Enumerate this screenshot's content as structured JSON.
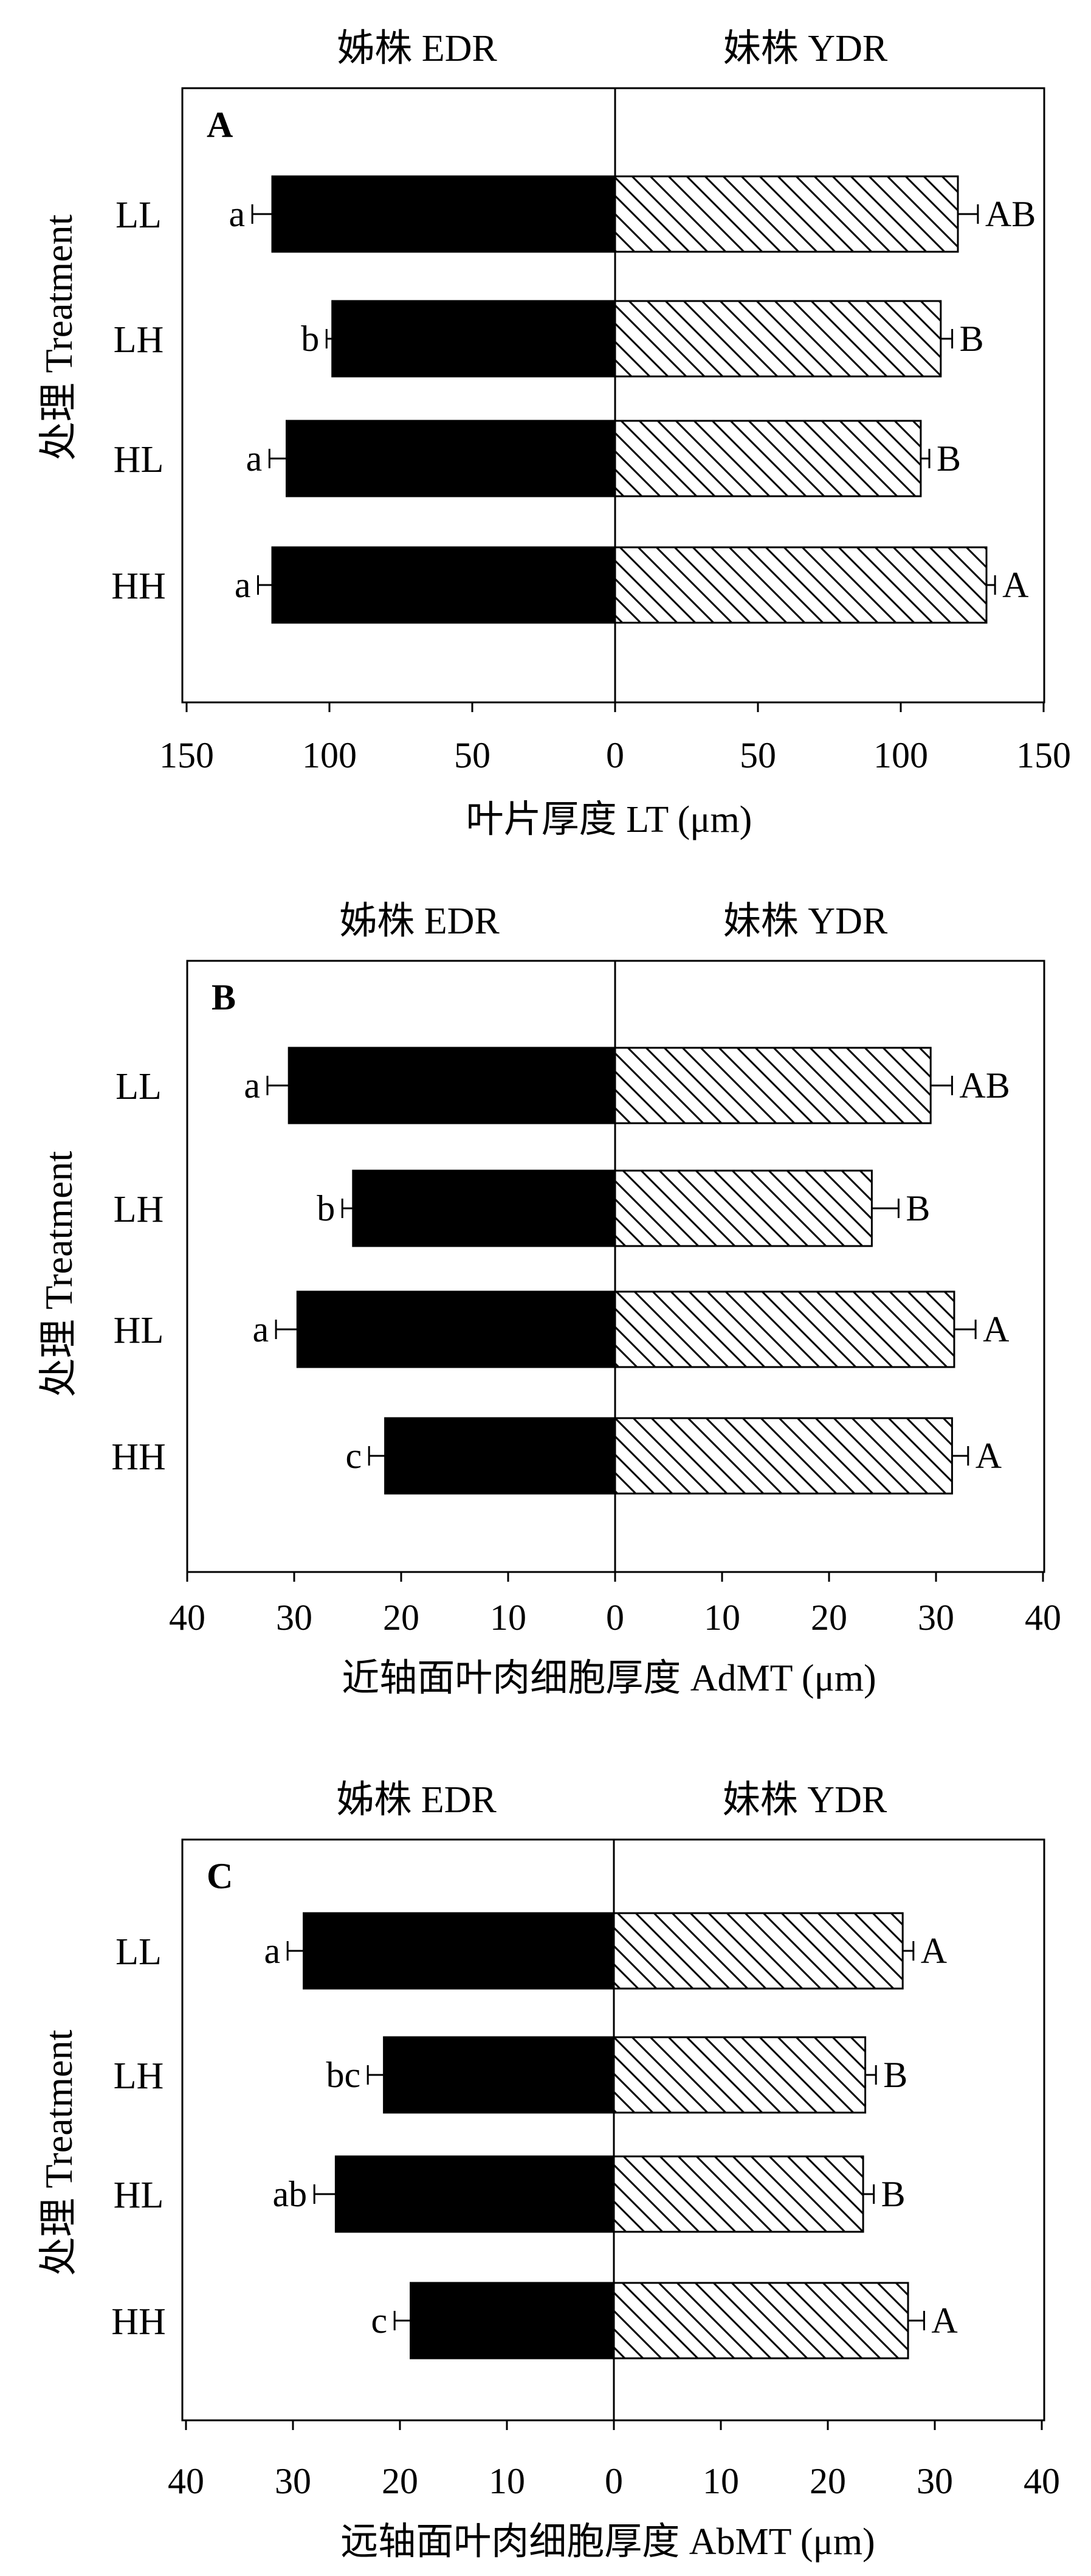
{
  "y_axis_label": "处理 Treatment",
  "chart_data": [
    {
      "type": "bar",
      "panel_label": "A",
      "left_title": "姊株 EDR",
      "right_title": "妹株 YDR",
      "xlabel": "叶片厚度 LT (μm)",
      "xlim": [
        -150,
        150
      ],
      "xticks": [
        -150,
        -100,
        -50,
        0,
        50,
        100,
        150
      ],
      "xtick_labels": [
        "150",
        "100",
        "50",
        "0",
        "50",
        "100",
        "150"
      ],
      "categories": [
        "LL",
        "LH",
        "HL",
        "HH"
      ],
      "series": [
        {
          "name": "姊株 EDR",
          "fill": "solid",
          "values": [
            120,
            99,
            115,
            120
          ],
          "errors": [
            7,
            2,
            6,
            5
          ],
          "labels": [
            "a",
            "b",
            "a",
            "a"
          ]
        },
        {
          "name": "妹株 YDR",
          "fill": "hatch",
          "values": [
            120,
            114,
            107,
            130
          ],
          "errors": [
            7,
            4,
            3,
            3
          ],
          "labels": [
            "AB",
            "B",
            "B",
            "A"
          ]
        }
      ]
    },
    {
      "type": "bar",
      "panel_label": "B",
      "left_title": "姊株 EDR",
      "right_title": "妹株 YDR",
      "xlabel": "近轴面叶肉细胞厚度 AdMT (μm)",
      "xlim": [
        -40,
        40
      ],
      "xticks": [
        -40,
        -30,
        -20,
        -10,
        0,
        10,
        20,
        30,
        40
      ],
      "xtick_labels": [
        "40",
        "30",
        "20",
        "10",
        "0",
        "10",
        "20",
        "30",
        "40"
      ],
      "categories": [
        "LL",
        "LH",
        "HL",
        "HH"
      ],
      "series": [
        {
          "name": "姊株 EDR",
          "fill": "solid",
          "values": [
            30.5,
            24.5,
            29.7,
            21.5
          ],
          "errors": [
            2,
            1,
            2,
            1.5
          ],
          "labels": [
            "a",
            "b",
            "a",
            "c"
          ]
        },
        {
          "name": "妹株 YDR",
          "fill": "hatch",
          "values": [
            29.5,
            24,
            31.7,
            31.5
          ],
          "errors": [
            2,
            2.5,
            2,
            1.5
          ],
          "labels": [
            "AB",
            "B",
            "A",
            "A"
          ]
        }
      ]
    },
    {
      "type": "bar",
      "panel_label": "C",
      "left_title": "姊株 EDR",
      "right_title": "妹株 YDR",
      "xlabel": "远轴面叶肉细胞厚度 AbMT (μm)",
      "xlim": [
        -40,
        40
      ],
      "xticks": [
        -40,
        -30,
        -20,
        -10,
        0,
        10,
        20,
        30,
        40
      ],
      "xtick_labels": [
        "40",
        "30",
        "20",
        "10",
        "0",
        "10",
        "20",
        "30",
        "40"
      ],
      "categories": [
        "LL",
        "LH",
        "HL",
        "HH"
      ],
      "series": [
        {
          "name": "姊株 EDR",
          "fill": "solid",
          "values": [
            29,
            21.5,
            26,
            19
          ],
          "errors": [
            1.5,
            1.5,
            2,
            1.5
          ],
          "labels": [
            "a",
            "bc",
            "ab",
            "c"
          ]
        },
        {
          "name": "妹株 YDR",
          "fill": "hatch",
          "values": [
            27,
            23.5,
            23.3,
            27.5
          ],
          "errors": [
            1,
            1,
            1,
            1.5
          ],
          "labels": [
            "A",
            "B",
            "B",
            "A"
          ]
        }
      ]
    }
  ]
}
